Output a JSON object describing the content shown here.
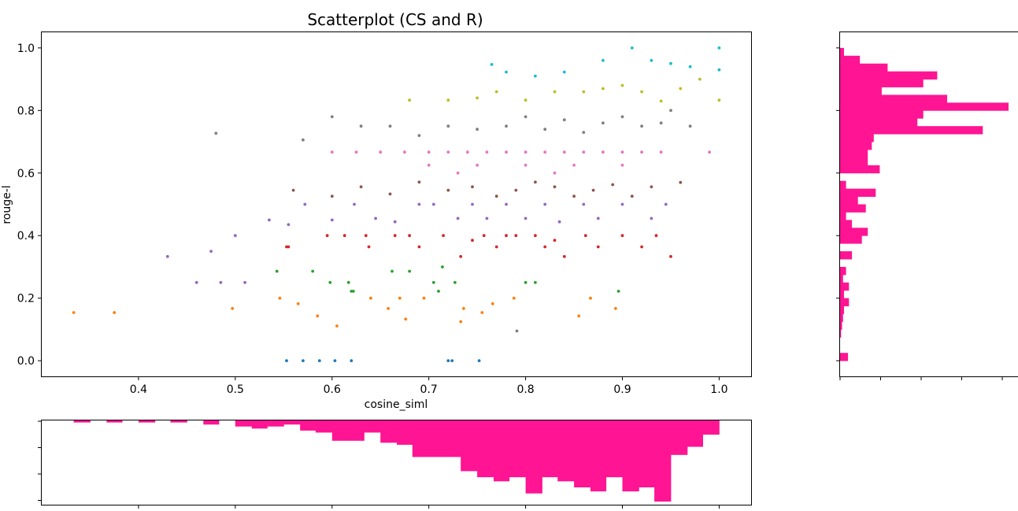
{
  "chart_data": [
    {
      "type": "scatter",
      "title": "Scatterplot (CS and R)",
      "xlabel": "cosine_siml",
      "ylabel": "rouge-l",
      "xlim": [
        0.3,
        1.033
      ],
      "ylim": [
        -0.05,
        1.05
      ],
      "x_ticks": [
        "0.4",
        "0.5",
        "0.6",
        "0.7",
        "0.8",
        "0.9",
        "1.0"
      ],
      "y_ticks": [
        "0.0",
        "0.2",
        "0.4",
        "0.6",
        "0.8",
        "1.0"
      ],
      "grid": false,
      "colors_by_y_band": [
        "#1f77b4",
        "#7f7f7f",
        "#ff7f0e",
        "#2ca02c",
        "#d62728",
        "#9467bd",
        "#8c564b",
        "#e377c2",
        "#7f7f7f",
        "#bcbd22",
        "#17becf"
      ],
      "series": [
        {
          "color": "#1f77b4",
          "points": [
            [
              0.553,
              0.0
            ],
            [
              0.57,
              0.0
            ],
            [
              0.587,
              0.0
            ],
            [
              0.603,
              0.0
            ],
            [
              0.62,
              0.0
            ],
            [
              0.72,
              0.0
            ],
            [
              0.724,
              0.0
            ],
            [
              0.752,
              0.0
            ]
          ]
        },
        {
          "color": "#7f7f7f",
          "points": [
            [
              0.791,
              0.095
            ]
          ]
        },
        {
          "color": "#ff7f0e",
          "points": [
            [
              0.333,
              0.154
            ],
            [
              0.375,
              0.154
            ],
            [
              0.497,
              0.167
            ],
            [
              0.546,
              0.2
            ],
            [
              0.565,
              0.182
            ],
            [
              0.585,
              0.143
            ],
            [
              0.605,
              0.111
            ],
            [
              0.64,
              0.2
            ],
            [
              0.658,
              0.167
            ],
            [
              0.67,
              0.2
            ],
            [
              0.676,
              0.133
            ],
            [
              0.695,
              0.2
            ],
            [
              0.733,
              0.125
            ],
            [
              0.736,
              0.167
            ],
            [
              0.755,
              0.154
            ],
            [
              0.766,
              0.182
            ],
            [
              0.788,
              0.2
            ],
            [
              0.855,
              0.143
            ],
            [
              0.867,
              0.2
            ],
            [
              0.893,
              0.167
            ]
          ]
        },
        {
          "color": "#2ca02c",
          "points": [
            [
              0.543,
              0.286
            ],
            [
              0.58,
              0.286
            ],
            [
              0.598,
              0.25
            ],
            [
              0.617,
              0.25
            ],
            [
              0.622,
              0.222
            ],
            [
              0.62,
              0.222
            ],
            [
              0.662,
              0.286
            ],
            [
              0.68,
              0.286
            ],
            [
              0.705,
              0.25
            ],
            [
              0.71,
              0.222
            ],
            [
              0.714,
              0.3
            ],
            [
              0.727,
              0.25
            ],
            [
              0.8,
              0.25
            ],
            [
              0.81,
              0.25
            ],
            [
              0.896,
              0.222
            ]
          ]
        },
        {
          "color": "#d62728",
          "points": [
            [
              0.553,
              0.364
            ],
            [
              0.555,
              0.364
            ],
            [
              0.595,
              0.4
            ],
            [
              0.613,
              0.4
            ],
            [
              0.635,
              0.4
            ],
            [
              0.638,
              0.364
            ],
            [
              0.665,
              0.4
            ],
            [
              0.68,
              0.4
            ],
            [
              0.69,
              0.364
            ],
            [
              0.715,
              0.4
            ],
            [
              0.733,
              0.333
            ],
            [
              0.745,
              0.385
            ],
            [
              0.757,
              0.4
            ],
            [
              0.77,
              0.364
            ],
            [
              0.78,
              0.4
            ],
            [
              0.79,
              0.4
            ],
            [
              0.81,
              0.4
            ],
            [
              0.82,
              0.364
            ],
            [
              0.83,
              0.385
            ],
            [
              0.84,
              0.333
            ],
            [
              0.862,
              0.4
            ],
            [
              0.875,
              0.364
            ],
            [
              0.9,
              0.4
            ],
            [
              0.92,
              0.364
            ],
            [
              0.935,
              0.4
            ],
            [
              0.95,
              0.333
            ]
          ]
        },
        {
          "color": "#9467bd",
          "points": [
            [
              0.43,
              0.333
            ],
            [
              0.46,
              0.25
            ],
            [
              0.475,
              0.35
            ],
            [
              0.485,
              0.25
            ],
            [
              0.5,
              0.4
            ],
            [
              0.51,
              0.25
            ],
            [
              0.535,
              0.45
            ],
            [
              0.555,
              0.435
            ],
            [
              0.572,
              0.5
            ],
            [
              0.6,
              0.45
            ],
            [
              0.623,
              0.5
            ],
            [
              0.645,
              0.455
            ],
            [
              0.665,
              0.444
            ],
            [
              0.69,
              0.5
            ],
            [
              0.705,
              0.5
            ],
            [
              0.73,
              0.455
            ],
            [
              0.745,
              0.5
            ],
            [
              0.76,
              0.455
            ],
            [
              0.78,
              0.5
            ],
            [
              0.8,
              0.455
            ],
            [
              0.82,
              0.5
            ],
            [
              0.835,
              0.444
            ],
            [
              0.86,
              0.5
            ],
            [
              0.875,
              0.455
            ],
            [
              0.9,
              0.5
            ],
            [
              0.93,
              0.455
            ],
            [
              0.945,
              0.5
            ]
          ]
        },
        {
          "color": "#8c564b",
          "points": [
            [
              0.56,
              0.545
            ],
            [
              0.6,
              0.526
            ],
            [
              0.63,
              0.556
            ],
            [
              0.66,
              0.533
            ],
            [
              0.69,
              0.571
            ],
            [
              0.72,
              0.545
            ],
            [
              0.745,
              0.556
            ],
            [
              0.77,
              0.526
            ],
            [
              0.79,
              0.545
            ],
            [
              0.81,
              0.571
            ],
            [
              0.83,
              0.556
            ],
            [
              0.85,
              0.526
            ],
            [
              0.87,
              0.545
            ],
            [
              0.89,
              0.563
            ],
            [
              0.91,
              0.526
            ],
            [
              0.93,
              0.556
            ],
            [
              0.96,
              0.57
            ]
          ]
        },
        {
          "color": "#e377c2",
          "points": [
            [
              0.6,
              0.667
            ],
            [
              0.625,
              0.667
            ],
            [
              0.65,
              0.667
            ],
            [
              0.675,
              0.667
            ],
            [
              0.7,
              0.667
            ],
            [
              0.72,
              0.667
            ],
            [
              0.74,
              0.667
            ],
            [
              0.76,
              0.667
            ],
            [
              0.78,
              0.667
            ],
            [
              0.8,
              0.667
            ],
            [
              0.82,
              0.667
            ],
            [
              0.84,
              0.667
            ],
            [
              0.86,
              0.667
            ],
            [
              0.88,
              0.667
            ],
            [
              0.9,
              0.667
            ],
            [
              0.92,
              0.667
            ],
            [
              0.94,
              0.667
            ],
            [
              0.99,
              0.667
            ],
            [
              0.7,
              0.625
            ],
            [
              0.75,
              0.625
            ],
            [
              0.8,
              0.625
            ],
            [
              0.85,
              0.625
            ],
            [
              0.9,
              0.625
            ],
            [
              0.73,
              0.6
            ],
            [
              0.83,
              0.6
            ]
          ]
        },
        {
          "color": "#7f7f7f",
          "points": [
            [
              0.48,
              0.727
            ],
            [
              0.57,
              0.706
            ],
            [
              0.6,
              0.78
            ],
            [
              0.63,
              0.75
            ],
            [
              0.66,
              0.75
            ],
            [
              0.69,
              0.72
            ],
            [
              0.72,
              0.75
            ],
            [
              0.75,
              0.74
            ],
            [
              0.78,
              0.75
            ],
            [
              0.8,
              0.78
            ],
            [
              0.82,
              0.74
            ],
            [
              0.84,
              0.77
            ],
            [
              0.86,
              0.73
            ],
            [
              0.88,
              0.76
            ],
            [
              0.9,
              0.78
            ],
            [
              0.92,
              0.75
            ],
            [
              0.94,
              0.76
            ],
            [
              0.95,
              0.8
            ],
            [
              0.97,
              0.75
            ]
          ]
        },
        {
          "color": "#bcbd22",
          "points": [
            [
              0.68,
              0.833
            ],
            [
              0.72,
              0.833
            ],
            [
              0.75,
              0.84
            ],
            [
              0.77,
              0.86
            ],
            [
              0.8,
              0.833
            ],
            [
              0.83,
              0.86
            ],
            [
              0.86,
              0.86
            ],
            [
              0.88,
              0.87
            ],
            [
              0.9,
              0.88
            ],
            [
              0.92,
              0.86
            ],
            [
              0.94,
              0.83
            ],
            [
              0.96,
              0.87
            ],
            [
              0.98,
              0.9
            ],
            [
              1.0,
              0.833
            ]
          ]
        },
        {
          "color": "#17becf",
          "points": [
            [
              0.765,
              0.947
            ],
            [
              0.78,
              0.923
            ],
            [
              0.81,
              0.91
            ],
            [
              0.84,
              0.923
            ],
            [
              0.88,
              0.96
            ],
            [
              0.91,
              1.0
            ],
            [
              0.93,
              0.96
            ],
            [
              0.95,
              0.95
            ],
            [
              0.97,
              0.94
            ],
            [
              1.0,
              1.0
            ],
            [
              1.0,
              0.93
            ]
          ]
        }
      ]
    },
    {
      "type": "bar",
      "orientation": "horizontal",
      "description_axis": "rouge-l",
      "color": "#ff1493",
      "ylim": [
        -0.05,
        1.05
      ],
      "bin_edges": [
        0.0,
        0.025,
        0.05,
        0.075,
        0.1,
        0.125,
        0.15,
        0.175,
        0.2,
        0.225,
        0.25,
        0.275,
        0.3,
        0.325,
        0.35,
        0.375,
        0.4,
        0.425,
        0.45,
        0.475,
        0.5,
        0.525,
        0.55,
        0.575,
        0.6,
        0.625,
        0.65,
        0.675,
        0.7,
        0.725,
        0.75,
        0.775,
        0.8,
        0.825,
        0.85,
        0.875,
        0.9,
        0.925,
        0.95,
        0.975,
        1.0
      ],
      "values": [
        4,
        0,
        0,
        0.5,
        1,
        1.5,
        2,
        4.5,
        2,
        4.5,
        1.5,
        3,
        0,
        6,
        0,
        11,
        14,
        6,
        3,
        13,
        9,
        18,
        3,
        0,
        20,
        14,
        14,
        16,
        17,
        72,
        39,
        42,
        85,
        54,
        21,
        42,
        49,
        24,
        10,
        2
      ]
    },
    {
      "type": "bar",
      "orientation": "vertical_inverted",
      "description_axis": "cosine_siml",
      "color": "#ff1493",
      "xlim": [
        0.3,
        1.033
      ],
      "bin_edges": [
        0.333,
        0.35,
        0.367,
        0.383,
        0.4,
        0.417,
        0.433,
        0.45,
        0.467,
        0.483,
        0.5,
        0.517,
        0.533,
        0.55,
        0.567,
        0.583,
        0.6,
        0.617,
        0.633,
        0.65,
        0.667,
        0.683,
        0.7,
        0.717,
        0.733,
        0.75,
        0.767,
        0.783,
        0.8,
        0.817,
        0.833,
        0.85,
        0.867,
        0.883,
        0.9,
        0.917,
        0.933,
        0.95,
        0.967,
        0.983,
        1.0
      ],
      "values": [
        1,
        0,
        1,
        0,
        1,
        0,
        1,
        0,
        2,
        0,
        3,
        4,
        3,
        2,
        5,
        6,
        10,
        10,
        6,
        11,
        12,
        18,
        18,
        18,
        25,
        28,
        30,
        28,
        36,
        28,
        30,
        33,
        35,
        28,
        35,
        33,
        40,
        17,
        13,
        7
      ]
    }
  ]
}
